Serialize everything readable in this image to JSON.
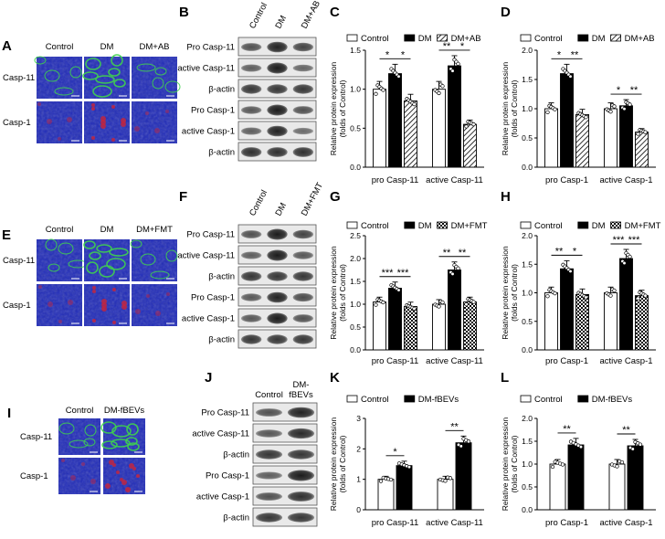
{
  "panel_letters": [
    "A",
    "B",
    "C",
    "D",
    "E",
    "F",
    "G",
    "H",
    "I",
    "J",
    "K",
    "L"
  ],
  "micro": [
    {
      "letter": "A",
      "cols": [
        "Control",
        "DM",
        "DM+AB"
      ],
      "rows": [
        "Casp-11",
        "Casp-1"
      ]
    },
    {
      "letter": "E",
      "cols": [
        "Control",
        "DM",
        "DM+FMT"
      ],
      "rows": [
        "Casp-11",
        "Casp-1"
      ]
    },
    {
      "letter": "I",
      "cols": [
        "Control",
        "DM-fBEVs"
      ],
      "rows": [
        "Casp-11",
        "Casp-1"
      ]
    }
  ],
  "blots": [
    {
      "letter": "B",
      "lanes": [
        "Control",
        "DM",
        "DM+AB"
      ],
      "rows": [
        "Pro Casp-11",
        "active Casp-11",
        "β-actin",
        "Pro Casp-1",
        "active Casp-1",
        "β-actin"
      ]
    },
    {
      "letter": "F",
      "lanes": [
        "Control",
        "DM",
        "DM+FMT"
      ],
      "rows": [
        "Pro Casp-11",
        "active Casp-11",
        "β-actin",
        "Pro Casp-1",
        "active Casp-1",
        "β-actin"
      ]
    },
    {
      "letter": "J",
      "lanes": [
        "Control",
        "DM-\nfBEVs"
      ],
      "rows": [
        "Pro Casp-11",
        "active Casp-11",
        "β-actin",
        "Pro Casp-1",
        "active Casp-1",
        "β-actin"
      ]
    }
  ],
  "colors": {
    "control": "#ffffff",
    "dm": "#000000",
    "hatch": "#000000",
    "green": "#3fd14e",
    "blue": "#1f2ab8",
    "red": "#c8243a"
  },
  "chart_data": [
    {
      "letter": "C",
      "type": "bar",
      "categories": [
        "pro Casp-11",
        "active Casp-11"
      ],
      "series": [
        {
          "name": "Control",
          "values": [
            1.0,
            1.0
          ]
        },
        {
          "name": "DM",
          "values": [
            1.2,
            1.3
          ]
        },
        {
          "name": "DM+AB",
          "values": [
            0.85,
            0.55
          ]
        }
      ],
      "ylabel": "Relative protein expression\n(folds of Control)",
      "ylim": [
        0,
        1.5
      ],
      "yticks": [
        "0.0",
        "0.5",
        "1.0",
        "1.5"
      ],
      "significance": [
        [
          "*",
          "*"
        ],
        [
          "**",
          "*"
        ]
      ],
      "legend": "top"
    },
    {
      "letter": "D",
      "type": "bar",
      "categories": [
        "pro Casp-1",
        "active Casp-1"
      ],
      "series": [
        {
          "name": "Control",
          "values": [
            1.0,
            1.0
          ]
        },
        {
          "name": "DM",
          "values": [
            1.6,
            1.05
          ]
        },
        {
          "name": "DM+AB",
          "values": [
            0.9,
            0.6
          ]
        }
      ],
      "ylabel": "Relative protein expression\n(folds of Control)",
      "ylim": [
        0,
        2.0
      ],
      "yticks": [
        "0.0",
        "0.5",
        "1.0",
        "1.5",
        "2.0"
      ],
      "significance": [
        [
          "*",
          "**"
        ],
        [
          "*",
          "**"
        ]
      ],
      "legend": "top"
    },
    {
      "letter": "G",
      "type": "bar",
      "categories": [
        "pro Casp-11",
        "active Casp-11"
      ],
      "series": [
        {
          "name": "Control",
          "values": [
            1.05,
            1.0
          ]
        },
        {
          "name": "DM",
          "values": [
            1.35,
            1.75
          ]
        },
        {
          "name": "DM+FMT",
          "values": [
            0.95,
            1.05
          ]
        }
      ],
      "ylabel": "Relative protein expression\n(folds of Control)",
      "ylim": [
        0,
        2.5
      ],
      "yticks": [
        "0.0",
        "0.5",
        "1.0",
        "1.5",
        "2.0",
        "2.5"
      ],
      "significance": [
        [
          "***",
          "***"
        ],
        [
          "**",
          "**"
        ]
      ],
      "legend": "top"
    },
    {
      "letter": "H",
      "type": "bar",
      "categories": [
        "pro Casp-1",
        "active Casp-1"
      ],
      "series": [
        {
          "name": "Control",
          "values": [
            1.0,
            1.0
          ]
        },
        {
          "name": "DM",
          "values": [
            1.42,
            1.6
          ]
        },
        {
          "name": "DM+FMT",
          "values": [
            0.97,
            0.95
          ]
        }
      ],
      "ylabel": "Relative protein expression\n(folds of Control)",
      "ylim": [
        0,
        2.0
      ],
      "yticks": [
        "0.0",
        "0.5",
        "1.0",
        "1.5",
        "2.0"
      ],
      "significance": [
        [
          "**",
          "*"
        ],
        [
          "***",
          "***"
        ]
      ],
      "legend": "top"
    },
    {
      "letter": "K",
      "type": "bar",
      "categories": [
        "pro Casp-11",
        "active Casp-11"
      ],
      "series": [
        {
          "name": "Control",
          "values": [
            1.0,
            1.0
          ]
        },
        {
          "name": "DM-fBEVs",
          "values": [
            1.45,
            2.2
          ]
        }
      ],
      "ylabel": "Relative protein expression\n(folds of Control)",
      "ylim": [
        0,
        3
      ],
      "yticks": [
        "0",
        "1",
        "2",
        "3"
      ],
      "significance": [
        [
          "*"
        ],
        [
          "**"
        ]
      ],
      "legend": "top"
    },
    {
      "letter": "L",
      "type": "bar",
      "categories": [
        "pro Casp-1",
        "active Casp-1"
      ],
      "series": [
        {
          "name": "Control",
          "values": [
            1.0,
            1.0
          ]
        },
        {
          "name": "DM-fBEVs",
          "values": [
            1.42,
            1.4
          ]
        }
      ],
      "ylabel": "Relative protein expression\n(folds of Control)",
      "ylim": [
        0,
        2.0
      ],
      "yticks": [
        "0.0",
        "0.5",
        "1.0",
        "1.5",
        "2.0"
      ],
      "significance": [
        [
          "**"
        ],
        [
          "**"
        ]
      ],
      "legend": "top"
    }
  ]
}
